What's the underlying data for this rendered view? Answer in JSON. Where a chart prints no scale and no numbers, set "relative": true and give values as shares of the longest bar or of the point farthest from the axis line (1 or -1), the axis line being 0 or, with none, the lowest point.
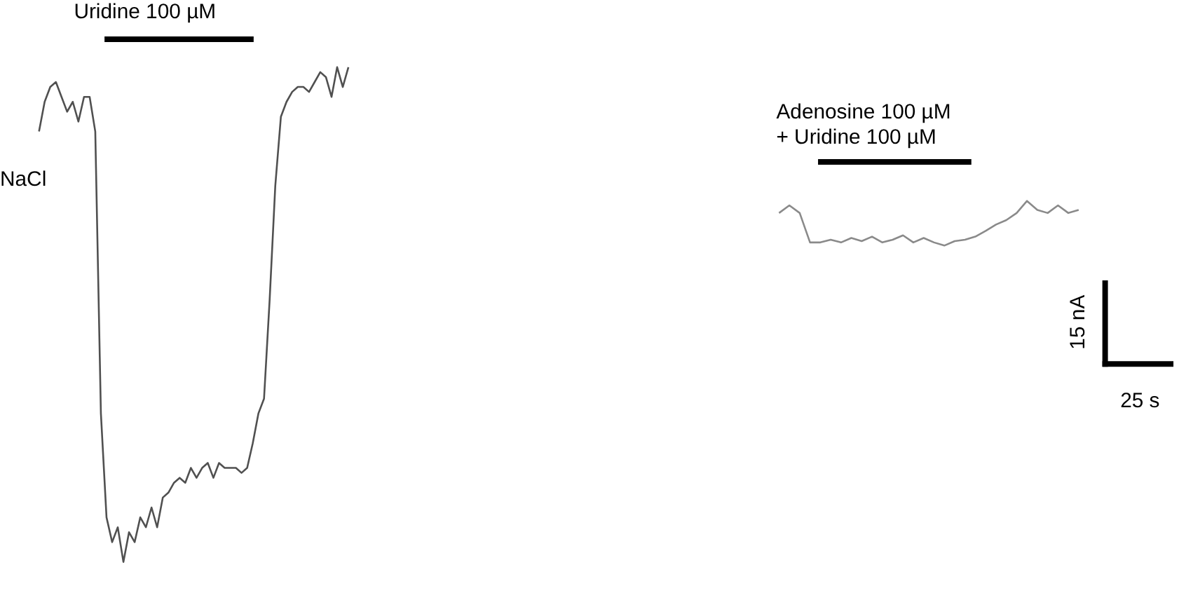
{
  "chart_data": [
    {
      "type": "line",
      "relative": true,
      "categories": [
        null,
        null,
        null,
        null,
        null,
        null,
        null,
        null,
        null,
        null,
        null,
        null,
        null,
        null,
        null,
        null,
        null,
        null,
        null,
        null,
        null,
        null,
        null,
        null,
        null,
        null,
        null,
        null,
        null,
        null,
        null,
        null,
        null,
        null,
        null,
        null,
        null,
        null,
        null,
        null,
        null,
        null,
        null,
        null,
        null,
        null,
        null,
        null,
        null,
        null,
        null,
        null,
        null,
        null,
        null,
        null
      ],
      "series": [
        {
          "color": "#505050",
          "values": [
            0.87,
            0.93,
            0.96,
            0.97,
            0.94,
            0.91,
            0.93,
            0.89,
            0.94,
            0.94,
            0.87,
            0.3,
            0.09,
            0.04,
            0.07,
            0,
            0.06,
            0.04,
            0.09,
            0.07,
            0.11,
            0.07,
            0.13,
            0.14,
            0.16,
            0.17,
            0.16,
            0.19,
            0.17,
            0.19,
            0.2,
            0.17,
            0.2,
            0.19,
            0.19,
            0.19,
            0.18,
            0.19,
            0.24,
            0.3,
            0.33,
            0.53,
            0.76,
            0.9,
            0.93,
            0.95,
            0.96,
            0.96,
            0.95,
            0.97,
            0.99,
            0.98,
            0.94,
            1,
            0.96,
            1
          ]
        }
      ],
      "annotations": [
        "Uridine 100 µM",
        "NaCl"
      ]
    },
    {
      "type": "line",
      "relative": true,
      "categories": [
        null,
        null,
        null,
        null,
        null,
        null,
        null,
        null,
        null,
        null,
        null,
        null,
        null,
        null,
        null,
        null,
        null,
        null,
        null,
        null,
        null,
        null,
        null,
        null,
        null,
        null,
        null,
        null,
        null,
        null
      ],
      "series": [
        {
          "color": "#8a8a8a",
          "values": [
            0.73,
            0.9,
            0.73,
            0.07,
            0.07,
            0.13,
            0.07,
            0.17,
            0.1,
            0.2,
            0.07,
            0.13,
            0.23,
            0.07,
            0.17,
            0.07,
            0,
            0.1,
            0.13,
            0.2,
            0.33,
            0.47,
            0.57,
            0.73,
            1,
            0.8,
            0.73,
            0.9,
            0.73,
            0.8
          ]
        }
      ],
      "annotations": [
        "Adenosine 100 µM",
        "+ Uridine 100 µM",
        "15 nA",
        "25 s"
      ]
    }
  ]
}
